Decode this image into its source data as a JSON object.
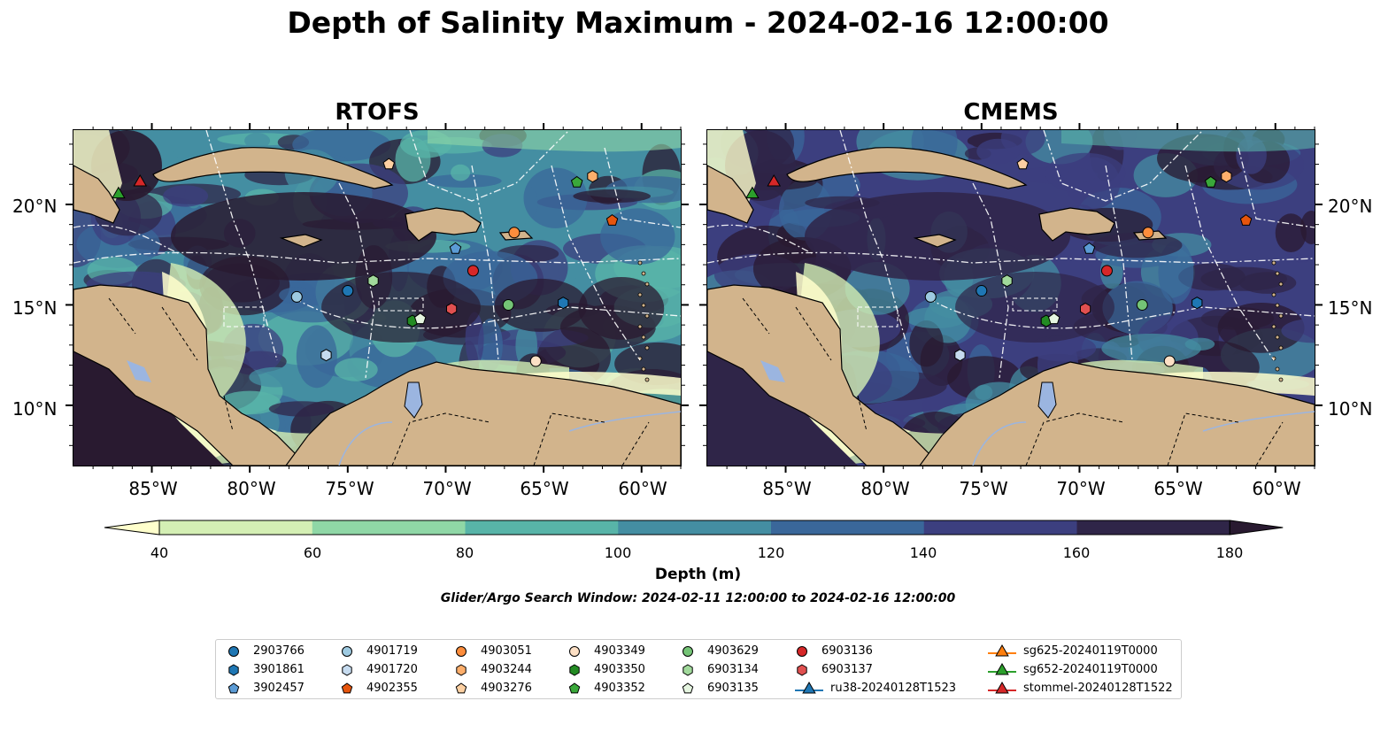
{
  "title": "Depth of Salinity Maximum - 2024-02-16 12:00:00",
  "panels": [
    {
      "title": "RTOFS"
    },
    {
      "title": "CMEMS"
    }
  ],
  "lat_labels": [
    "20°N",
    "15°N",
    "10°N"
  ],
  "lon_labels": [
    "85°W",
    "80°W",
    "75°W",
    "70°W",
    "65°W",
    "60°W"
  ],
  "colorbar": {
    "label": "Depth (m)",
    "ticks": [
      "40",
      "60",
      "80",
      "100",
      "120",
      "140",
      "160",
      "180"
    ],
    "colors": [
      "#ffffcc",
      "#d4efb4",
      "#8fd7a6",
      "#58b4a8",
      "#448ea2",
      "#3a679a",
      "#3c3f7f",
      "#2f2548",
      "#291a30"
    ]
  },
  "window_label": "Glider/Argo Search Window: 2024-02-11 12:00:00 to 2024-02-16 12:00:00",
  "legend": {
    "items": [
      {
        "label": "2903766",
        "marker": "circle",
        "color": "#1f77b4"
      },
      {
        "label": "3901861",
        "marker": "hexagon",
        "color": "#1f77b4"
      },
      {
        "label": "3902457",
        "marker": "pentagon",
        "color": "#5b9bd5"
      },
      {
        "label": "4901719",
        "marker": "circle",
        "color": "#9ecae1"
      },
      {
        "label": "4901720",
        "marker": "hexagon",
        "color": "#c6dbef"
      },
      {
        "label": "4902355",
        "marker": "pentagon",
        "color": "#e6550d"
      },
      {
        "label": "4903051",
        "marker": "circle",
        "color": "#fd8d3c"
      },
      {
        "label": "4903244",
        "marker": "hexagon",
        "color": "#fdae6b"
      },
      {
        "label": "4903276",
        "marker": "pentagon",
        "color": "#fdd0a2"
      },
      {
        "label": "4903349",
        "marker": "circle",
        "color": "#fde0c5"
      },
      {
        "label": "4903350",
        "marker": "hexagon",
        "color": "#238b23"
      },
      {
        "label": "4903352",
        "marker": "pentagon",
        "color": "#3aa83a"
      },
      {
        "label": "4903629",
        "marker": "circle",
        "color": "#74c476"
      },
      {
        "label": "6903134",
        "marker": "hexagon",
        "color": "#a1d99b"
      },
      {
        "label": "6903135",
        "marker": "pentagon",
        "color": "#e5f5e0"
      },
      {
        "label": "6903136",
        "marker": "circle",
        "color": "#d62728"
      },
      {
        "label": "6903137",
        "marker": "hexagon",
        "color": "#e05050"
      },
      {
        "label": "ru38-20240128T1523",
        "marker": "triangle-line",
        "color": "#1f77b4"
      },
      {
        "label": "sg625-20240119T0000",
        "marker": "triangle-line",
        "color": "#ff7f0e"
      },
      {
        "label": "sg652-20240119T0000",
        "marker": "triangle-line",
        "color": "#2ca02c"
      },
      {
        "label": "stommel-20240128T1522",
        "marker": "triangle-line",
        "color": "#d62728"
      }
    ]
  },
  "map_colors": {
    "land": "#d2b48c",
    "lake": "#9bb5e0",
    "river": "#9bb5e0",
    "overlay": "#ffffff"
  },
  "observations": [
    {
      "id": "2903766",
      "lon": -75.0,
      "lat": 15.7
    },
    {
      "id": "3901861",
      "lon": -64.0,
      "lat": 15.1
    },
    {
      "id": "3902457",
      "lon": -69.5,
      "lat": 17.8
    },
    {
      "id": "4901719",
      "lon": -77.6,
      "lat": 15.4
    },
    {
      "id": "4901720",
      "lon": -76.1,
      "lat": 12.5
    },
    {
      "id": "4902355",
      "lon": -61.5,
      "lat": 19.2
    },
    {
      "id": "4903051",
      "lon": -66.5,
      "lat": 18.6
    },
    {
      "id": "4903244",
      "lon": -62.5,
      "lat": 21.4
    },
    {
      "id": "4903276",
      "lon": -72.9,
      "lat": 22.0
    },
    {
      "id": "4903349",
      "lon": -65.4,
      "lat": 12.2
    },
    {
      "id": "4903350",
      "lon": -71.7,
      "lat": 14.2
    },
    {
      "id": "4903352",
      "lon": -63.3,
      "lat": 21.1
    },
    {
      "id": "4903629",
      "lon": -66.8,
      "lat": 15.0
    },
    {
      "id": "6903134",
      "lon": -73.7,
      "lat": 16.2
    },
    {
      "id": "6903135",
      "lon": -71.3,
      "lat": 14.3
    },
    {
      "id": "6903136",
      "lon": -68.6,
      "lat": 16.7
    },
    {
      "id": "6903137",
      "lon": -69.7,
      "lat": 14.8
    },
    {
      "id": "sg652-20240119T0000",
      "lon": -86.7,
      "lat": 20.5
    },
    {
      "id": "stommel-20240128T1522",
      "lon": -85.6,
      "lat": 21.1
    }
  ]
}
